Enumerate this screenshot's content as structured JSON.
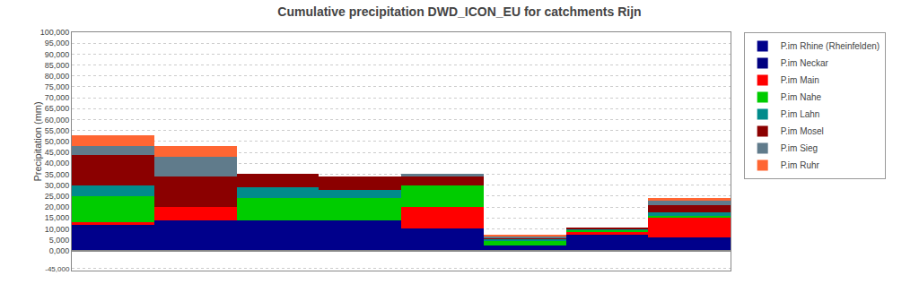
{
  "chart_data": [
    {
      "type": "bar",
      "title": "Cumulative precipitation DWD_ICON_EU for catchments Rijn",
      "ylabel": "Precipitation (mm)",
      "categories": [
        null,
        null,
        null,
        null,
        null,
        null,
        null,
        null
      ],
      "stacked": true,
      "series": [
        {
          "name": "P.im Rhine (Rheinfelden)",
          "color": "#00008B",
          "values": [
            10000,
            14000,
            14000,
            14000,
            10000,
            2500,
            7000,
            5000
          ]
        },
        {
          "name": "P.im Neckar",
          "color": "#000080",
          "values": [
            2000,
            0,
            0,
            0,
            0,
            0,
            500,
            1000
          ]
        },
        {
          "name": "P.im Main",
          "color": "#FF0000",
          "values": [
            1000,
            6000,
            0,
            0,
            10000,
            0,
            1000,
            9000
          ]
        },
        {
          "name": "P.im Nahe",
          "color": "#00CC00",
          "values": [
            12000,
            0,
            10000,
            10000,
            10000,
            2000,
            1000,
            1000
          ]
        },
        {
          "name": "P.im Lahn",
          "color": "#008B8B",
          "values": [
            5000,
            0,
            5000,
            4000,
            0,
            1000,
            500,
            1500
          ]
        },
        {
          "name": "P.im Mosel",
          "color": "#8B0000",
          "values": [
            14000,
            14000,
            6000,
            6000,
            4000,
            500,
            500,
            3500
          ]
        },
        {
          "name": "P.im Sieg",
          "color": "#607B8B",
          "values": [
            4000,
            9000,
            0,
            0,
            1000,
            500,
            0,
            2000
          ]
        },
        {
          "name": "P.im Ruhr",
          "color": "#FF6633",
          "values": [
            5000,
            5000,
            0,
            0,
            0,
            1000,
            0,
            1000
          ]
        }
      ],
      "ylim": [
        0,
        100000
      ],
      "yticks": [
        {
          "value": 0,
          "label": "0,000"
        },
        {
          "value": 5000,
          "label": "5,000"
        },
        {
          "value": 10000,
          "label": "10,000"
        },
        {
          "value": 15000,
          "label": "15,000"
        },
        {
          "value": 20000,
          "label": "20,000"
        },
        {
          "value": 25000,
          "label": "25,000"
        },
        {
          "value": 30000,
          "label": "30,000"
        },
        {
          "value": 35000,
          "label": "35,000"
        },
        {
          "value": 40000,
          "label": "40,000"
        },
        {
          "value": 45000,
          "label": "45,000"
        },
        {
          "value": 50000,
          "label": "50,000"
        },
        {
          "value": 55000,
          "label": "55,000"
        },
        {
          "value": 60000,
          "label": "60,000"
        },
        {
          "value": 65000,
          "label": "65,000"
        },
        {
          "value": 70000,
          "label": "70,000"
        },
        {
          "value": 75000,
          "label": "75,000"
        },
        {
          "value": 80000,
          "label": "80,000"
        },
        {
          "value": 85000,
          "label": "85,000"
        },
        {
          "value": 90000,
          "label": "90,000"
        },
        {
          "value": 95000,
          "label": "95,000"
        },
        {
          "value": 100000,
          "label": "100,000"
        }
      ],
      "grid": true,
      "legend": "right",
      "tick_labels": "y"
    },
    {
      "type": "bar",
      "categories": [
        null,
        null,
        null,
        null,
        null,
        null,
        null,
        null
      ],
      "series": [],
      "ylim": [
        -50000,
        0
      ],
      "yticks": [
        {
          "value": -45000,
          "label": "-45,000"
        }
      ],
      "grid": true,
      "tick_labels": "y"
    }
  ]
}
